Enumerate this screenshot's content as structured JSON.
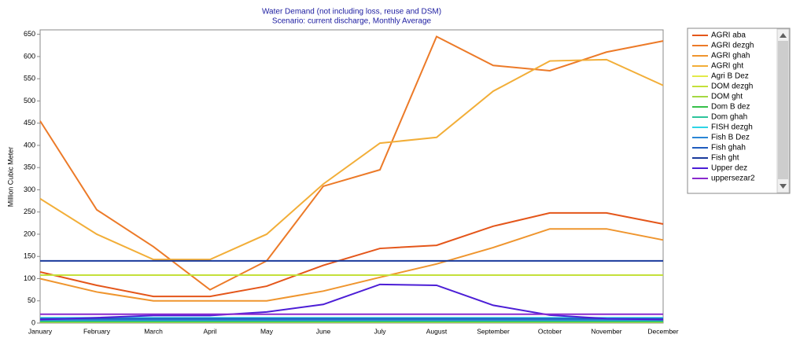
{
  "chart_data": {
    "type": "line",
    "title": "Water Demand (not including loss, reuse and DSM)",
    "subtitle": "Scenario: current discharge,  Monthly Average",
    "y_label": "Million Cubic Meter",
    "categories": [
      "January",
      "February",
      "March",
      "April",
      "May",
      "June",
      "July",
      "August",
      "September",
      "October",
      "November",
      "December"
    ],
    "ylim": [
      0,
      660
    ],
    "yticks": [
      0,
      50,
      100,
      150,
      200,
      250,
      300,
      350,
      400,
      450,
      500,
      550,
      600,
      650
    ],
    "series": [
      {
        "name": "AGRI aba",
        "color": "#e4561a",
        "values": [
          115,
          85,
          60,
          60,
          83,
          130,
          168,
          175,
          218,
          248,
          248,
          223
        ]
      },
      {
        "name": "AGRI dezgh",
        "color": "#ec7a28",
        "values": [
          455,
          255,
          172,
          75,
          140,
          308,
          345,
          645,
          580,
          568,
          610,
          635
        ]
      },
      {
        "name": "AGRI ghah",
        "color": "#ef952e",
        "values": [
          100,
          70,
          50,
          50,
          50,
          72,
          103,
          133,
          170,
          212,
          212,
          187
        ]
      },
      {
        "name": "AGRI ght",
        "color": "#f2ae38",
        "values": [
          280,
          200,
          143,
          143,
          200,
          313,
          405,
          418,
          522,
          590,
          593,
          535
        ]
      },
      {
        "name": "Agri B Dez",
        "color": "#e2ea4a",
        "values": [
          2,
          2,
          2,
          2,
          2,
          2,
          2,
          2,
          2,
          2,
          2,
          2
        ]
      },
      {
        "name": "DOM dezgh",
        "color": "#c4e03a",
        "values": [
          108,
          108,
          108,
          108,
          108,
          108,
          108,
          108,
          108,
          108,
          108,
          108
        ]
      },
      {
        "name": "DOM ght",
        "color": "#a4d842",
        "values": [
          4,
          4,
          4,
          4,
          4,
          4,
          4,
          4,
          4,
          4,
          4,
          4
        ]
      },
      {
        "name": "Dom B dez",
        "color": "#36c04a",
        "values": [
          3,
          3,
          3,
          3,
          3,
          3,
          3,
          3,
          3,
          3,
          3,
          3
        ]
      },
      {
        "name": "Dom ghah",
        "color": "#2ec49c",
        "values": [
          5,
          5,
          5,
          5,
          5,
          5,
          5,
          5,
          5,
          5,
          5,
          5
        ]
      },
      {
        "name": "FISH dezgh",
        "color": "#2ed4e6",
        "values": [
          12,
          12,
          12,
          12,
          12,
          12,
          12,
          12,
          12,
          12,
          12,
          12
        ]
      },
      {
        "name": "Fish B Dez",
        "color": "#2a86d6",
        "values": [
          7,
          7,
          7,
          7,
          7,
          7,
          7,
          7,
          7,
          7,
          7,
          7
        ]
      },
      {
        "name": "Fish ghah",
        "color": "#205cbe",
        "values": [
          10,
          10,
          10,
          10,
          10,
          10,
          10,
          10,
          10,
          10,
          10,
          10
        ]
      },
      {
        "name": "Fish ght",
        "color": "#1a3a9c",
        "values": [
          140,
          140,
          140,
          140,
          140,
          140,
          140,
          140,
          140,
          140,
          140,
          140
        ]
      },
      {
        "name": "Upper dez",
        "color": "#4c1ed6",
        "values": [
          8,
          12,
          17,
          17,
          25,
          42,
          87,
          85,
          40,
          18,
          10,
          8
        ]
      },
      {
        "name": "uppersezar2",
        "color": "#8a2ace",
        "values": [
          20,
          20,
          20,
          20,
          20,
          20,
          20,
          20,
          20,
          20,
          20,
          20
        ]
      }
    ]
  }
}
